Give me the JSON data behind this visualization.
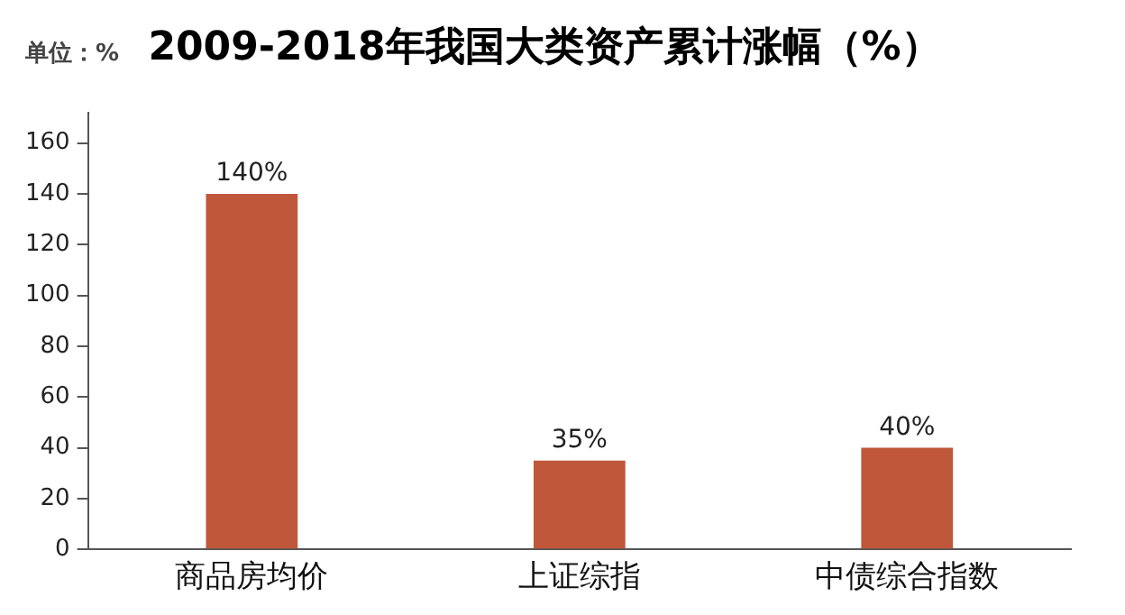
{
  "chart_data": {
    "type": "bar",
    "title": "2009-2018年我国大类资产累计涨幅（%）",
    "ylabel": "单位：%",
    "categories": [
      "商品房均价",
      "上证综指",
      "中债综合指数"
    ],
    "values": [
      140,
      35,
      40
    ],
    "value_labels": [
      "140%",
      "35%",
      "40%"
    ],
    "color": "#c0573a",
    "ylim": [
      0,
      172
    ],
    "yticks": [
      0,
      20,
      40,
      60,
      80,
      100,
      120,
      140,
      160
    ],
    "grid": false,
    "legend": false
  }
}
